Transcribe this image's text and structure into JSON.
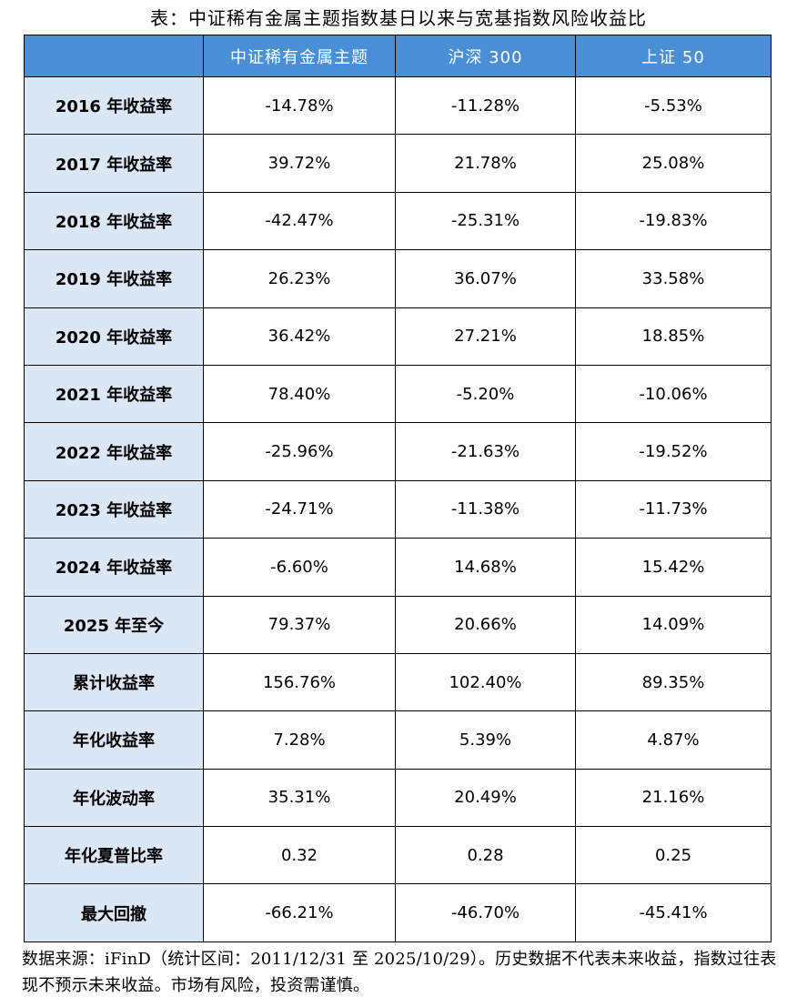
{
  "title": "表：中证稀有金属主题指数基日以来与宽基指数风险收益比",
  "table": {
    "header": [
      "",
      "中证稀有金属主题",
      "沪深 300",
      "上证 50"
    ],
    "rows": [
      {
        "label": "2016 年收益率",
        "cells": [
          "-14.78%",
          "-11.28%",
          "-5.53%"
        ]
      },
      {
        "label": "2017 年收益率",
        "cells": [
          "39.72%",
          "21.78%",
          "25.08%"
        ]
      },
      {
        "label": "2018 年收益率",
        "cells": [
          "-42.47%",
          "-25.31%",
          "-19.83%"
        ]
      },
      {
        "label": "2019 年收益率",
        "cells": [
          "26.23%",
          "36.07%",
          "33.58%"
        ]
      },
      {
        "label": "2020 年收益率",
        "cells": [
          "36.42%",
          "27.21%",
          "18.85%"
        ]
      },
      {
        "label": "2021 年收益率",
        "cells": [
          "78.40%",
          "-5.20%",
          "-10.06%"
        ]
      },
      {
        "label": "2022 年收益率",
        "cells": [
          "-25.96%",
          "-21.63%",
          "-19.52%"
        ]
      },
      {
        "label": "2023 年收益率",
        "cells": [
          "-24.71%",
          "-11.38%",
          "-11.73%"
        ]
      },
      {
        "label": "2024 年收益率",
        "cells": [
          "-6.60%",
          "14.68%",
          "15.42%"
        ]
      },
      {
        "label": "2025 年至今",
        "cells": [
          "79.37%",
          "20.66%",
          "14.09%"
        ]
      },
      {
        "label": "累计收益率",
        "cells": [
          "156.76%",
          "102.40%",
          "89.35%"
        ]
      },
      {
        "label": "年化收益率",
        "cells": [
          "7.28%",
          "5.39%",
          "4.87%"
        ]
      },
      {
        "label": "年化波动率",
        "cells": [
          "35.31%",
          "20.49%",
          "21.16%"
        ]
      },
      {
        "label": "年化夏普比率",
        "cells": [
          "0.32",
          "0.28",
          "0.25"
        ]
      },
      {
        "label": "最大回撤",
        "cells": [
          "-66.21%",
          "-46.70%",
          "-45.41%"
        ]
      }
    ]
  },
  "note": "数据来源：iFinD（统计区间：2011/12/31 至 2025/10/29）。历史数据不代表未来收益，指数过往表现不预示未来收益。市场有风险，投资需谨慎。",
  "colors": {
    "header_bg": "#4a8fd6",
    "header_text": "#ffffff",
    "row_label_bg": "#dce7f5",
    "border": "#000000"
  }
}
